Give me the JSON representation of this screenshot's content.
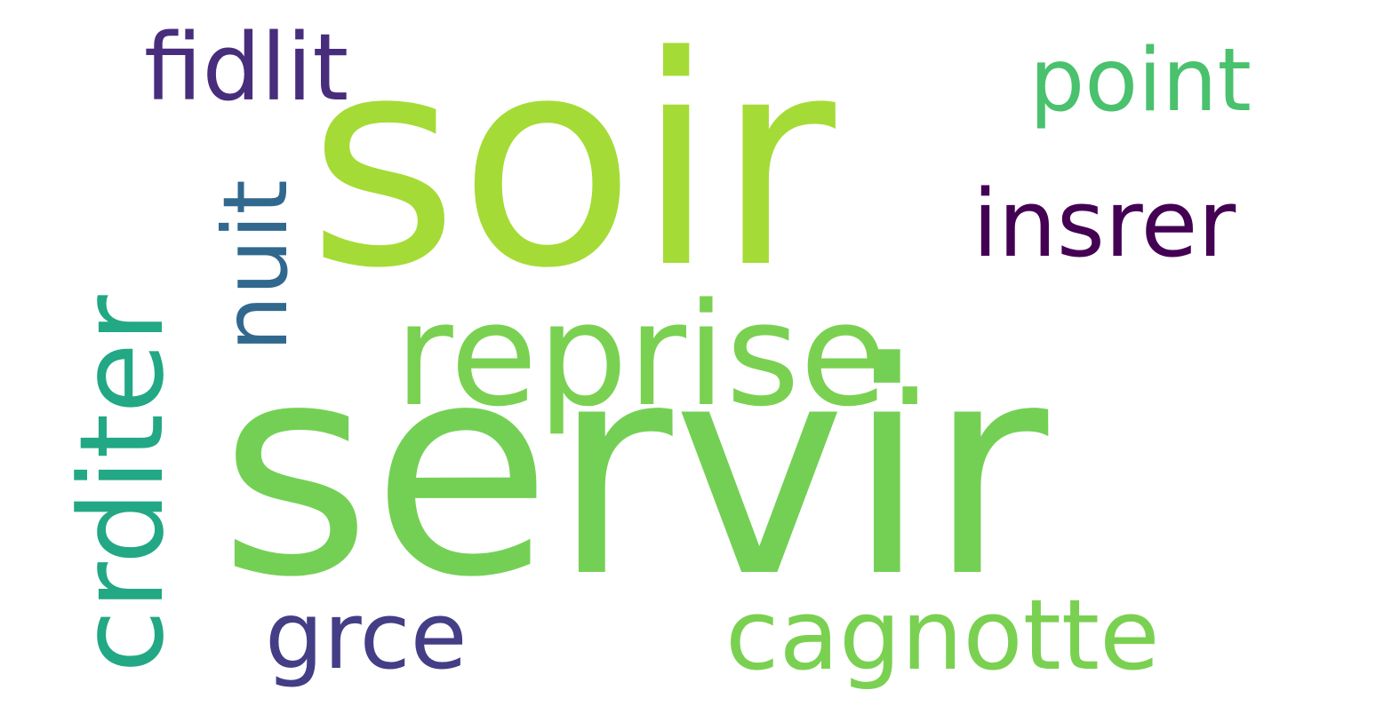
{
  "wordcloud": {
    "words": {
      "soir": {
        "text": "soir",
        "color": "#a5db36"
      },
      "servir": {
        "text": "servir",
        "color": "#74d055"
      },
      "reprise": {
        "text": "reprise.",
        "color": "#7ad151"
      },
      "cagnotte": {
        "text": "cagnotte",
        "color": "#7ad151"
      },
      "crditer": {
        "text": "crditer",
        "color": "#22a884"
      },
      "nuit": {
        "text": "nuit",
        "color": "#31688e"
      },
      "fidlit": {
        "text": "fidlit",
        "color": "#472d7b"
      },
      "point": {
        "text": "point",
        "color": "#4ac16d"
      },
      "insrer": {
        "text": "insrer",
        "color": "#440154"
      },
      "grce": {
        "text": "grce",
        "color": "#433e85"
      }
    }
  }
}
